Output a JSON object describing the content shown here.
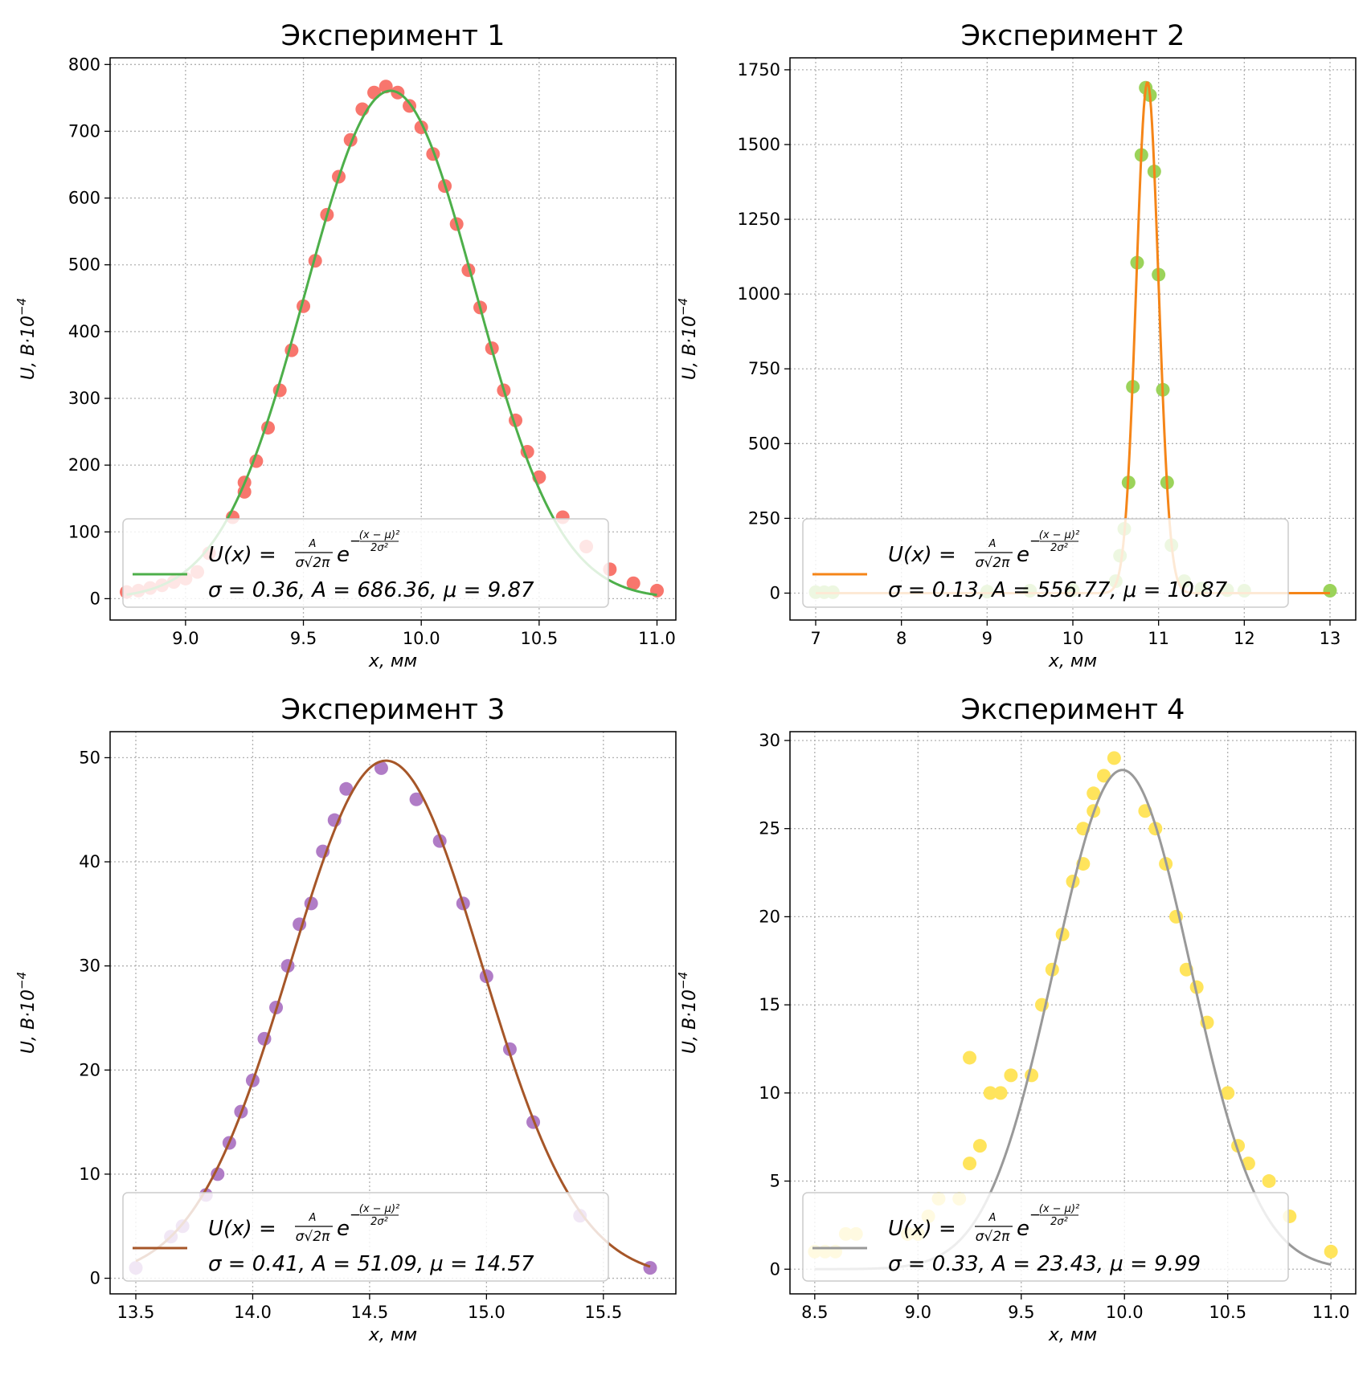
{
  "chart_data": [
    {
      "type": "scatter",
      "title": "Эксперимент 1",
      "xlabel": "x,  мм",
      "ylabel": "U,  B·10",
      "ylabel_exp": "−4",
      "xlim": [
        8.68,
        11.08
      ],
      "ylim": [
        -32,
        810
      ],
      "xticks": [
        "9.0",
        "9.5",
        "10.0",
        "10.5",
        "11.0"
      ],
      "xtick_values": [
        9.0,
        9.5,
        10.0,
        10.5,
        11.0
      ],
      "yticks": [
        "0",
        "100",
        "200",
        "300",
        "400",
        "500",
        "600",
        "700",
        "800"
      ],
      "ytick_values": [
        0,
        100,
        200,
        300,
        400,
        500,
        600,
        700,
        800
      ],
      "grid": true,
      "legend_position": "lower-center",
      "point_color": "#F8766D",
      "fit_color": "#4DAF4A",
      "fit": {
        "sigma": 0.36,
        "A": 686.36,
        "mu": 9.87
      },
      "legend": {
        "formula_label": "U(x) =",
        "params_text": "σ = 0.36, A = 686.36, μ = 9.87"
      },
      "points": {
        "x": [
          8.75,
          8.8,
          8.85,
          8.9,
          8.95,
          9.0,
          9.05,
          9.1,
          9.2,
          9.25,
          9.25,
          9.3,
          9.35,
          9.4,
          9.45,
          9.5,
          9.55,
          9.6,
          9.65,
          9.7,
          9.75,
          9.8,
          9.85,
          9.9,
          9.95,
          10.0,
          10.05,
          10.1,
          10.15,
          10.2,
          10.25,
          10.3,
          10.35,
          10.4,
          10.45,
          10.5,
          10.6,
          10.7,
          10.8,
          10.9,
          11.0
        ],
        "y": [
          10,
          12,
          16,
          20,
          25,
          30,
          40,
          68,
          122,
          160,
          174,
          206,
          256,
          312,
          372,
          438,
          506,
          575,
          632,
          687,
          733,
          758,
          767,
          758,
          738,
          706,
          666,
          618,
          561,
          492,
          436,
          375,
          312,
          267,
          220,
          182,
          122,
          78,
          44,
          23,
          12
        ]
      }
    },
    {
      "type": "scatter",
      "title": "Эксперимент 2",
      "xlabel": "x,  мм",
      "ylabel": "U,  B·10",
      "ylabel_exp": "−4",
      "xlim": [
        6.7,
        13.3
      ],
      "ylim": [
        -90,
        1790
      ],
      "xticks": [
        "7",
        "8",
        "9",
        "10",
        "11",
        "12",
        "13"
      ],
      "xtick_values": [
        7,
        8,
        9,
        10,
        11,
        12,
        13
      ],
      "yticks": [
        "0",
        "250",
        "500",
        "750",
        "1000",
        "1250",
        "1500",
        "1750"
      ],
      "ytick_values": [
        0,
        250,
        500,
        750,
        1000,
        1250,
        1500,
        1750
      ],
      "grid": true,
      "legend_position": "lower-center",
      "point_color": "#9BD35A",
      "fit_color": "#F58518",
      "fit": {
        "sigma": 0.13,
        "A": 556.77,
        "mu": 10.87
      },
      "legend": {
        "formula_label": "U(x) =",
        "params_text": "σ = 0.13, A = 556.77, μ = 10.87"
      },
      "points": {
        "x": [
          7.0,
          7.1,
          7.2,
          9.0,
          9.5,
          10.0,
          10.5,
          10.55,
          10.6,
          10.65,
          10.7,
          10.75,
          10.8,
          10.85,
          10.9,
          10.95,
          11.0,
          11.05,
          11.1,
          11.15,
          11.3,
          11.5,
          11.8,
          12.0,
          13.0
        ],
        "y": [
          3,
          3,
          3,
          5,
          8,
          10,
          40,
          125,
          215,
          370,
          690,
          1105,
          1465,
          1690,
          1665,
          1410,
          1065,
          680,
          370,
          160,
          40,
          15,
          10,
          8,
          8
        ]
      }
    },
    {
      "type": "scatter",
      "title": "Эксперимент 3",
      "xlabel": "x,  мм",
      "ylabel": "U,  B·10",
      "ylabel_exp": "−4",
      "xlim": [
        13.39,
        15.81
      ],
      "ylim": [
        -1.5,
        52.5
      ],
      "xticks": [
        "13.5",
        "14.0",
        "14.5",
        "15.0",
        "15.5"
      ],
      "xtick_values": [
        13.5,
        14.0,
        14.5,
        15.0,
        15.5
      ],
      "yticks": [
        "0",
        "10",
        "20",
        "30",
        "40",
        "50"
      ],
      "ytick_values": [
        0,
        10,
        20,
        30,
        40,
        50
      ],
      "grid": true,
      "legend_position": "lower-center",
      "point_color": "#B07CC6",
      "fit_color": "#A65628",
      "fit": {
        "sigma": 0.41,
        "A": 51.09,
        "mu": 14.57
      },
      "legend": {
        "formula_label": "U(x) =",
        "params_text": "σ = 0.41, A = 51.09, μ = 14.57"
      },
      "points": {
        "x": [
          13.5,
          13.65,
          13.7,
          13.8,
          13.85,
          13.9,
          13.95,
          14.0,
          14.05,
          14.1,
          14.15,
          14.2,
          14.25,
          14.3,
          14.35,
          14.4,
          14.55,
          14.7,
          14.8,
          14.9,
          15.0,
          15.1,
          15.2,
          15.4,
          15.7
        ],
        "y": [
          1,
          4,
          5,
          8,
          10,
          13,
          16,
          19,
          23,
          26,
          30,
          34,
          36,
          41,
          44,
          47,
          49,
          46,
          42,
          36,
          29,
          22,
          15,
          6,
          1
        ]
      }
    },
    {
      "type": "scatter",
      "title": "Эксперимент 4",
      "xlabel": "x,  мм",
      "ylabel": "U,  B·10",
      "ylabel_exp": "−4",
      "xlim": [
        8.38,
        11.12
      ],
      "ylim": [
        -1.4,
        30.5
      ],
      "xticks": [
        "8.5",
        "9.0",
        "9.5",
        "10.0",
        "10.5",
        "11.0"
      ],
      "xtick_values": [
        8.5,
        9.0,
        9.5,
        10.0,
        10.5,
        11.0
      ],
      "yticks": [
        "0",
        "5",
        "10",
        "15",
        "20",
        "25",
        "30"
      ],
      "ytick_values": [
        0,
        5,
        10,
        15,
        20,
        25,
        30
      ],
      "grid": true,
      "legend_position": "lower-center",
      "point_color": "#FFE45C",
      "fit_color": "#999999",
      "fit": {
        "sigma": 0.33,
        "A": 23.43,
        "mu": 9.99
      },
      "legend": {
        "formula_label": "U(x) =",
        "params_text": "σ = 0.33, A = 23.43, μ = 9.99"
      },
      "points": {
        "x": [
          8.5,
          8.55,
          8.6,
          8.65,
          8.7,
          8.95,
          9.0,
          9.05,
          9.1,
          9.2,
          9.25,
          9.25,
          9.3,
          9.35,
          9.4,
          9.45,
          9.55,
          9.6,
          9.65,
          9.7,
          9.75,
          9.8,
          9.8,
          9.85,
          9.85,
          9.9,
          9.95,
          10.1,
          10.15,
          10.2,
          10.25,
          10.3,
          10.35,
          10.4,
          10.5,
          10.55,
          10.6,
          10.7,
          10.8,
          11.0
        ],
        "y": [
          1,
          1,
          1,
          2,
          2,
          2,
          2,
          3,
          4,
          4,
          6,
          12,
          7,
          10,
          10,
          11,
          11,
          15,
          17,
          19,
          22,
          23,
          25,
          26,
          27,
          28,
          29,
          26,
          25,
          23,
          20,
          17,
          16,
          14,
          10,
          7,
          6,
          5,
          3,
          1
        ]
      }
    }
  ]
}
